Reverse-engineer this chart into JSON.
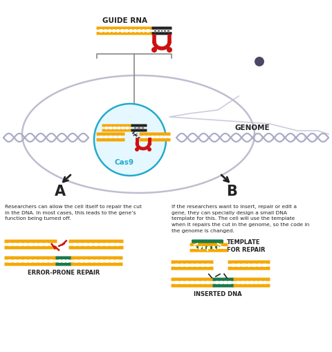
{
  "bg": "#ffffff",
  "orange": "#F5A800",
  "green": "#1A7A4A",
  "red": "#CC1111",
  "gray_dna": "#ABABC8",
  "dark": "#222222",
  "chr_color": "#4A4866",
  "cas9_ec": "#22AACC",
  "cas9_fc": "#E5F8FF",
  "guide_rna_label": "GUIDE RNA",
  "genome_label": "GENOME",
  "cas9_label": "Cas9",
  "label_A": "A",
  "label_B": "B",
  "text_A": "Researchers can allow the cell itself to repair the cut\nin the DNA. In most cases, this leads to the gene’s\nfunction being turned off.",
  "text_B": "If the researchers want to insert, repair or edit a\ngene, they can specially design a small DNA\ntemplate for this. The cell will use the template\nwhen it repairs the cut in the genome, so the code in\nthe genome is changed.",
  "error_label": "ERROR-PRONE REPAIR",
  "inserted_label": "INSERTED DNA",
  "template_label": "TEMPLATE\nFOR REPAIR"
}
